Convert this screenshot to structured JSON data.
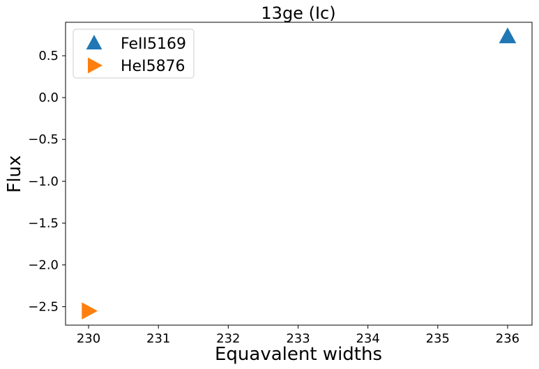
{
  "chart_data": {
    "type": "scatter",
    "title": "13ge (Ic)",
    "xlabel": "Equavalent widths",
    "ylabel": "Flux",
    "xlim": [
      229.67,
      236.35
    ],
    "ylim": [
      -2.72,
      0.9
    ],
    "xticks": [
      230,
      231,
      232,
      233,
      234,
      235,
      236
    ],
    "yticks": [
      0.5,
      0.0,
      -0.5,
      -1.0,
      -1.5,
      -2.0,
      -2.5
    ],
    "ytick_labels": [
      "0.5",
      "0.0",
      "−0.5",
      "−1.0",
      "−1.5",
      "−2.0",
      "−2.5"
    ],
    "grid": false,
    "legend_position": "upper-left",
    "series": [
      {
        "name": "FeII5169",
        "marker": "triangle-up",
        "color": "#1f77b4",
        "x": [
          236.0
        ],
        "y": [
          0.73
        ]
      },
      {
        "name": "HeI5876",
        "marker": "triangle-right",
        "color": "#ff7f0e",
        "x": [
          230.0
        ],
        "y": [
          -2.55
        ]
      }
    ]
  }
}
